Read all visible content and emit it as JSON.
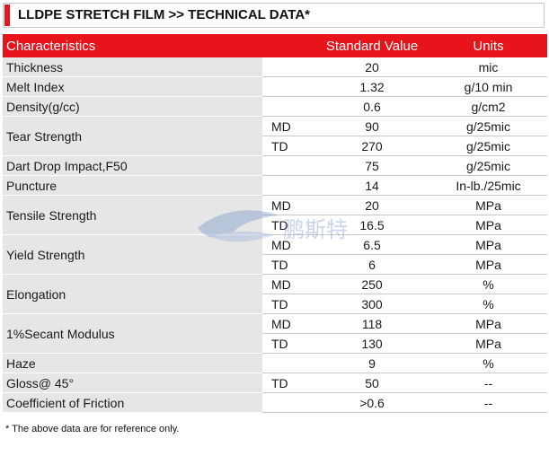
{
  "title": "LLDPE STRETCH FILM >> TECHNICAL DATA*",
  "colors": {
    "accent": "#e8141b",
    "header_text": "#ffffff",
    "characteristic_cell_bg": "#e6e6e6"
  },
  "table": {
    "headers": {
      "characteristics": "Characteristics",
      "standard_value": "Standard Value",
      "units": "Units"
    },
    "rows": {
      "thickness": {
        "name": "Thickness",
        "value": "20",
        "unit": "mic"
      },
      "melt_index": {
        "name": "Melt Index",
        "value": "1.32",
        "unit": "g/10 min"
      },
      "density": {
        "name": "Density(g/cc)",
        "value": "0.6",
        "unit": "g/cm2"
      },
      "tear_strength": {
        "name": "Tear Strength",
        "md": {
          "dir": "MD",
          "value": "90",
          "unit": "g/25mic"
        },
        "td": {
          "dir": "TD",
          "value": "270",
          "unit": "g/25mic"
        }
      },
      "dart_drop": {
        "name": "Dart Drop Impact,F50",
        "value": "75",
        "unit": "g/25mic"
      },
      "puncture": {
        "name": "Puncture",
        "value": "14",
        "unit": "In-lb./25mic"
      },
      "tensile_strength": {
        "name": "Tensile Strength",
        "md": {
          "dir": "MD",
          "value": "20",
          "unit": "MPa"
        },
        "td": {
          "dir": "TD",
          "value": "16.5",
          "unit": "MPa"
        }
      },
      "yield_strength": {
        "name": "Yield Strength",
        "md": {
          "dir": "MD",
          "value": "6.5",
          "unit": "MPa"
        },
        "td": {
          "dir": "TD",
          "value": "6",
          "unit": "MPa"
        }
      },
      "elongation": {
        "name": "Elongation",
        "md": {
          "dir": "MD",
          "value": "250",
          "unit": "%"
        },
        "td": {
          "dir": "TD",
          "value": "300",
          "unit": "%"
        }
      },
      "secant_modulus": {
        "name": "1%Secant Modulus",
        "md": {
          "dir": "MD",
          "value": "118",
          "unit": "MPa"
        },
        "td": {
          "dir": "TD",
          "value": "130",
          "unit": "MPa"
        }
      },
      "haze": {
        "name": "Haze",
        "value": "9",
        "unit": "%"
      },
      "gloss": {
        "name": "Gloss@ 45°",
        "dir": "TD",
        "value": "50",
        "unit": "--"
      },
      "cof": {
        "name": "Coefficient of Friction",
        "value": ">0.6",
        "unit": "--"
      }
    }
  },
  "watermark": {
    "icon": "bird-logo-icon",
    "text": "鹏斯特"
  },
  "footnote": "* The above data are for reference only."
}
